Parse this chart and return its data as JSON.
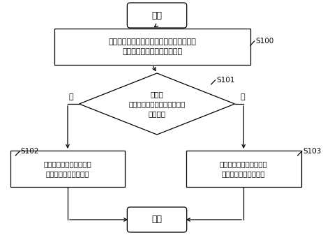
{
  "bg_color": "#ffffff",
  "font_color": "#000000",
  "box_color": "#ffffff",
  "border_color": "#000000",
  "arrow_color": "#000000",
  "start_text": "开始",
  "end_text": "结束",
  "s100_text": "根据对血液样本吸样过程中样本透光率的变\n化，生成吸样过程透光率曲线",
  "s100_label": "S100",
  "s101_text": "根据透\n光率曲线判断吸样过程中是否\n出现异常",
  "s101_label": "S101",
  "s102_text": "判定血液分析仪对所述血\n液样本的测量结果可信",
  "s102_label": "S102",
  "s103_text": "判定血液分析仪对所述血\n液样本的测量结果存疑",
  "s103_label": "S103",
  "no_text": "否",
  "yes_text": "是"
}
